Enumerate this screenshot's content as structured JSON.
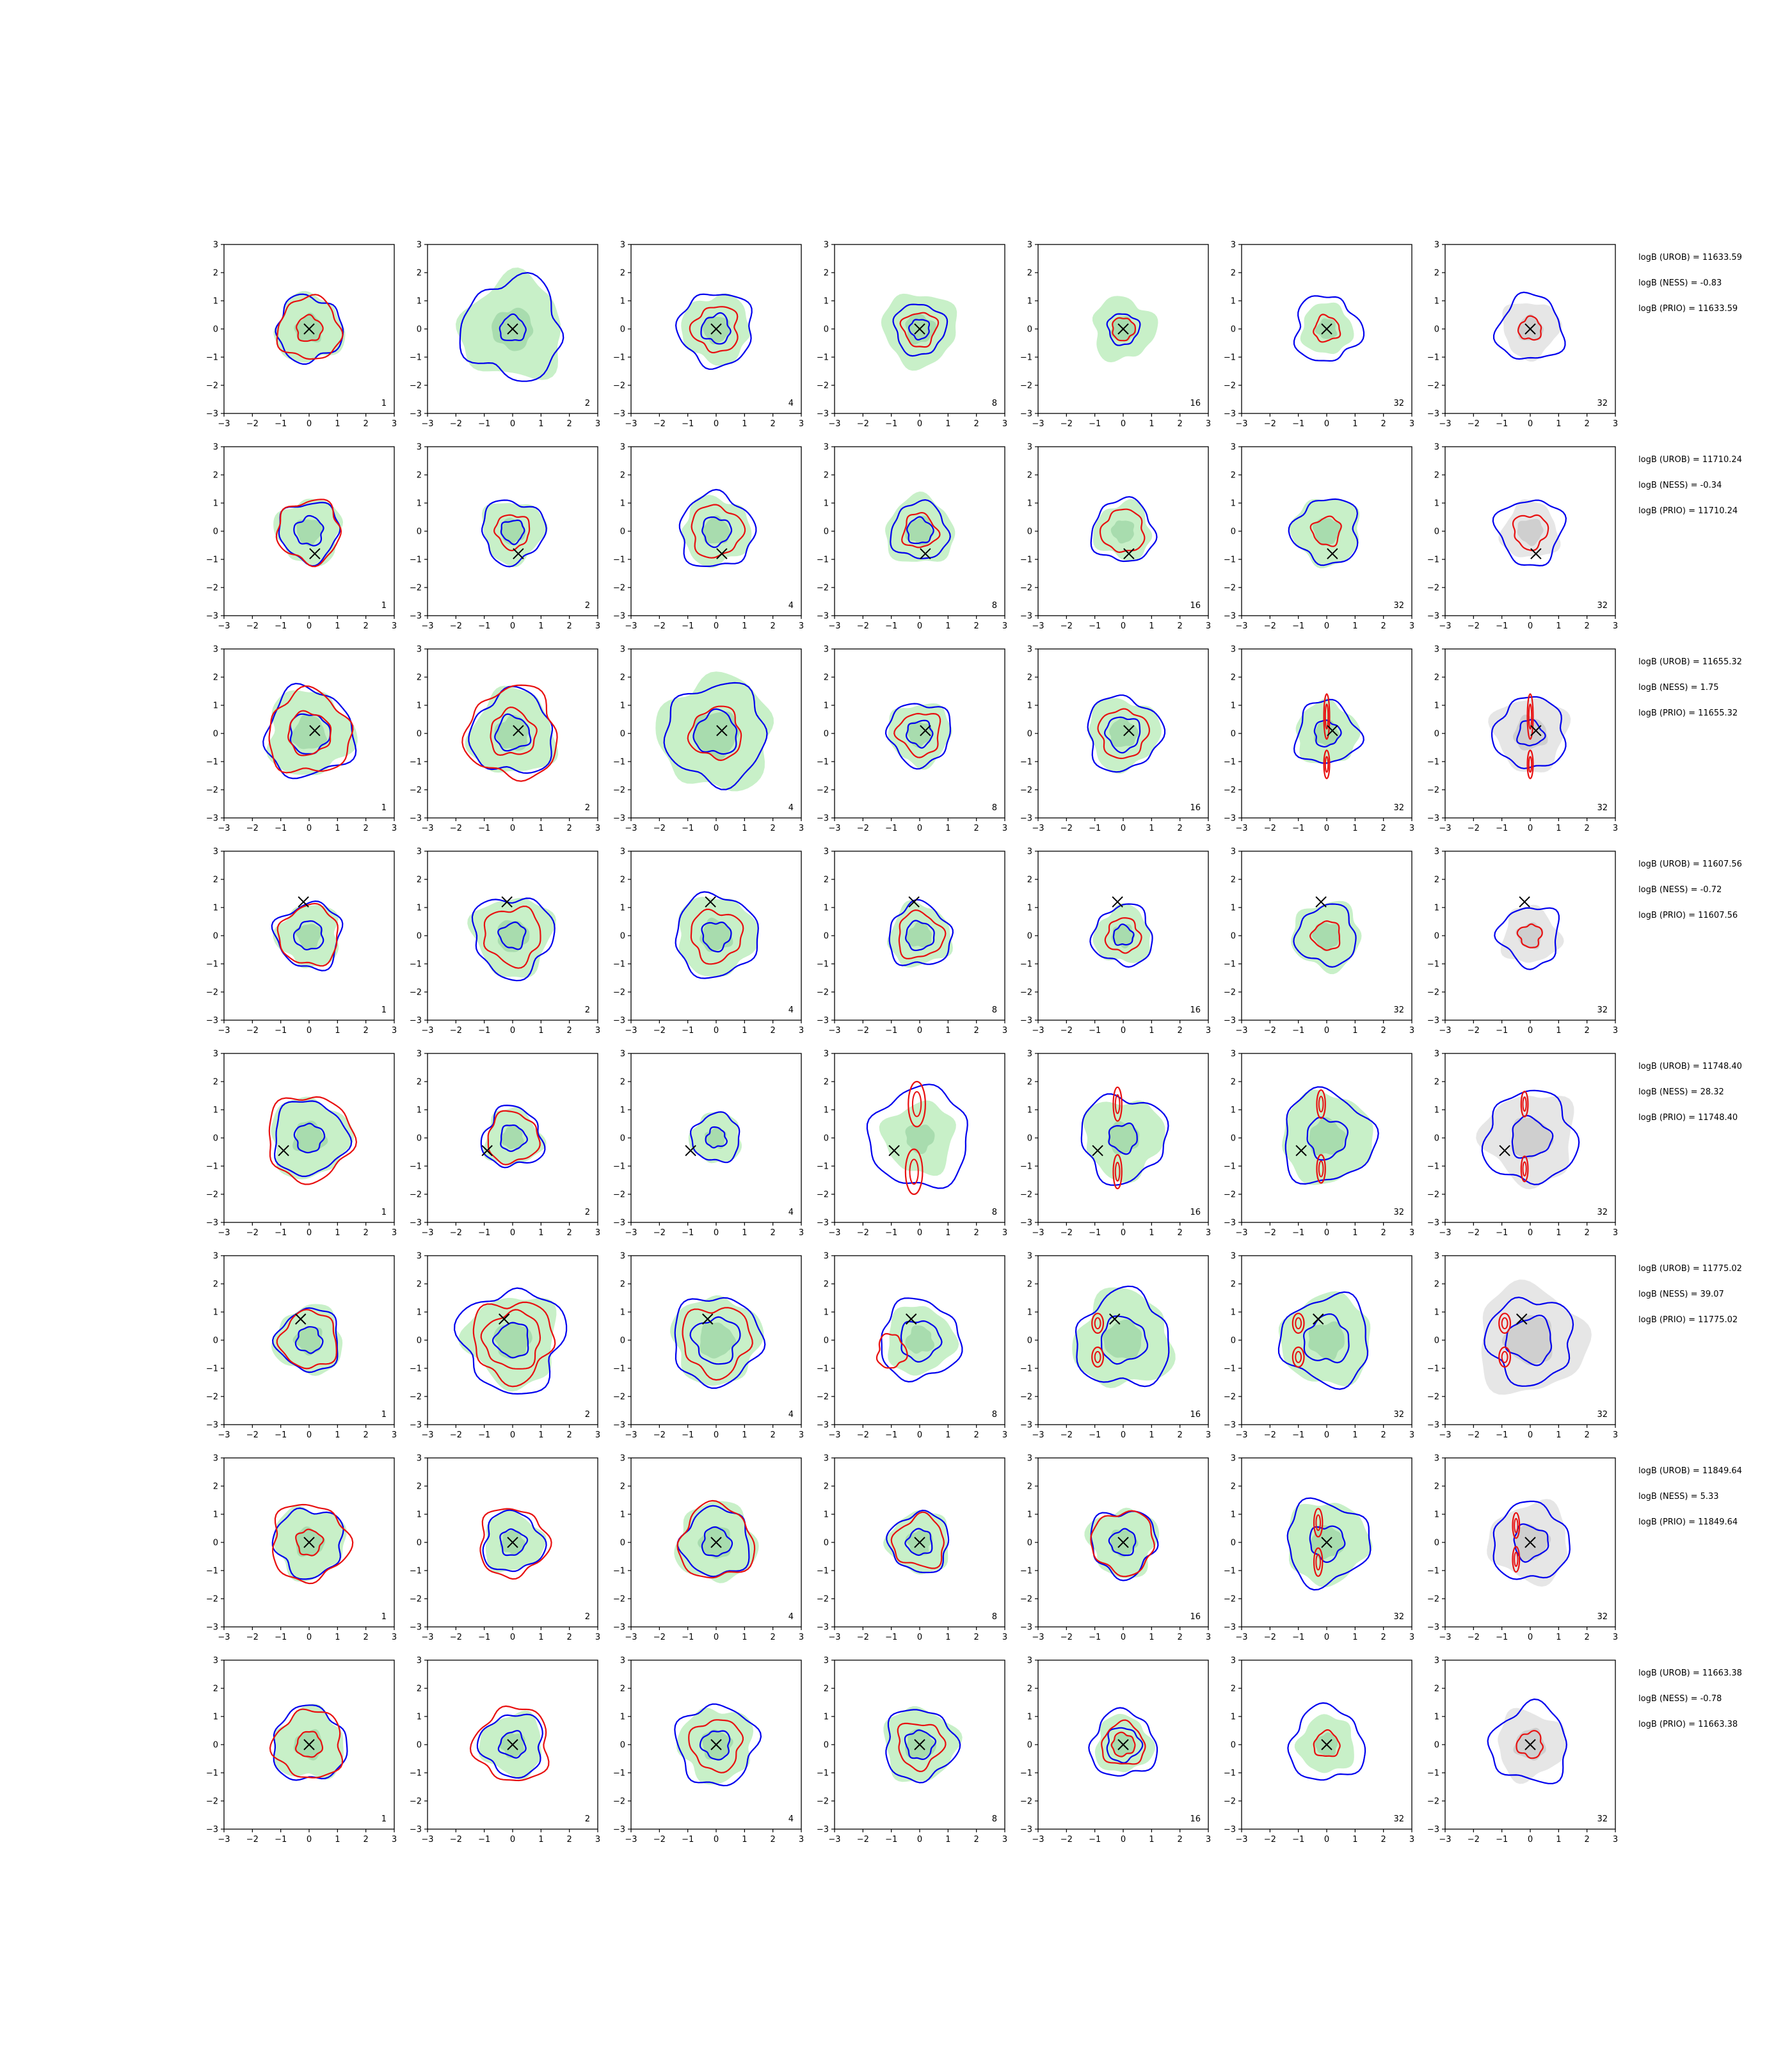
{
  "chart_data": {
    "type": "contour-grid",
    "rows": 8,
    "cols": 7,
    "xlim": [
      -3,
      3
    ],
    "ylim": [
      -3,
      3
    ],
    "ticks": [
      -3,
      -2,
      -1,
      0,
      1,
      2,
      3
    ],
    "tick_labels": [
      "−3",
      "−2",
      "−1",
      "0",
      "1",
      "2",
      "3"
    ],
    "col_labels": [
      "1",
      "2",
      "4",
      "8",
      "16",
      "32",
      "32"
    ],
    "colors": {
      "blue": "#0000ee",
      "red": "#e81010",
      "green_fill": "#c8f0c8",
      "green_inner": "#a8dcae",
      "grey_fill": "#e6e6e6",
      "grey_inner": "#cfcfcf",
      "marker": "#000000"
    },
    "markers": [
      [
        0,
        0
      ],
      [
        0.2,
        -0.8
      ],
      [
        0.2,
        0.1
      ],
      [
        -0.2,
        1.2
      ],
      [
        -0.9,
        -0.45
      ],
      [
        -0.3,
        0.75
      ],
      [
        0,
        0
      ],
      [
        0,
        0
      ]
    ],
    "panels": [
      [
        {
          "blue": [
            1.15
          ],
          "red": [
            0.45,
            1.1
          ],
          "green": 1.2
        },
        {
          "blue": [
            0.45,
            1.75
          ],
          "red": [],
          "green": 1.8
        },
        {
          "blue": [
            0.5,
            1.3
          ],
          "red": [
            0.8
          ],
          "green": 1.2
        },
        {
          "blue": [
            0.35,
            0.9
          ],
          "red": [
            0.6
          ],
          "green": 1.3
        },
        {
          "blue": [
            0.55
          ],
          "red": [
            0.4
          ],
          "green": 1.1
        },
        {
          "blue": [
            1.15
          ],
          "red": [
            0.45
          ],
          "green": 0.9
        },
        {
          "blue": [
            1.15
          ],
          "red": [
            0.4
          ],
          "green": 0,
          "grey": 1.0
        }
      ],
      [
        {
          "blue": [
            0.5,
            1.05
          ],
          "red": [
            1.1
          ],
          "green": 1.15
        },
        {
          "blue": [
            0.4,
            1.1
          ],
          "red": [
            0.6
          ],
          "green": 1.1
        },
        {
          "blue": [
            0.5,
            1.3
          ],
          "red": [
            0.9
          ],
          "green": 1.2
        },
        {
          "blue": [
            0.45,
            1.0
          ],
          "red": [
            0.6
          ],
          "green": 1.2
        },
        {
          "blue": [
            1.1
          ],
          "red": [
            0.75
          ],
          "green": 1.0
        },
        {
          "blue": [
            1.15
          ],
          "red": [
            0.5
          ],
          "green": 1.2
        },
        {
          "blue": [
            1.15
          ],
          "red": [
            0.6
          ],
          "green": 0,
          "grey": 1.0
        }
      ],
      [
        {
          "blue": [
            0.7,
            1.55
          ],
          "red": [
            0.75,
            1.45
          ],
          "green": 1.5
        },
        {
          "blue": [
            0.6,
            1.45
          ],
          "red": [
            0.8,
            1.6
          ],
          "green": 1.5
        },
        {
          "blue": [
            0.75,
            1.75
          ],
          "red": [
            0.9
          ],
          "green": 2.0
        },
        {
          "blue": [
            0.45,
            1.1
          ],
          "red": [
            0.75
          ],
          "green": 1.1
        },
        {
          "blue": [
            0.6,
            1.3
          ],
          "red": [
            0.85
          ],
          "green": 1.25
        },
        {
          "blue": [
            0.45,
            1.1
          ],
          "red": [],
          "green": 1.1,
          "red_vert": [
            [
              0,
              0.6,
              0.1,
              0.8
            ],
            [
              0,
              -1.1,
              0.1,
              0.5
            ]
          ]
        },
        {
          "blue": [
            0.45,
            1.25
          ],
          "red": [],
          "green": 0,
          "grey": 1.3,
          "red_vert": [
            [
              0,
              0.6,
              0.1,
              0.8
            ],
            [
              0,
              -1.1,
              0.1,
              0.5
            ]
          ]
        }
      ],
      [
        {
          "blue": [
            0.5,
            1.15
          ],
          "red": [
            1.05
          ],
          "green": 1.1
        },
        {
          "blue": [
            0.45,
            1.4
          ],
          "red": [
            1.0
          ],
          "green": 1.4
        },
        {
          "blue": [
            0.5,
            1.45
          ],
          "red": [
            0.9
          ],
          "green": 1.4
        },
        {
          "blue": [
            0.5,
            1.1
          ],
          "red": [
            0.8
          ],
          "green": 1.1
        },
        {
          "blue": [
            0.35,
            1.05
          ],
          "red": [
            0.6
          ],
          "green": 1.0
        },
        {
          "blue": [
            1.05
          ],
          "red": [
            0.5
          ],
          "green": 1.2
        },
        {
          "blue": [
            1.05
          ],
          "red": [
            0.4
          ],
          "green": 0,
          "grey": 1.0
        }
      ],
      [
        {
          "blue": [
            0.5,
            1.3
          ],
          "red": [
            1.5
          ],
          "green": 1.4
        },
        {
          "blue": [
            0.45,
            1.05
          ],
          "red": [
            0.9
          ],
          "green": 1.0
        },
        {
          "blue": [
            0.35,
            0.85
          ],
          "red": [],
          "green": 0.9
        },
        {
          "blue": [
            1.75
          ],
          "red": [],
          "green": 1.25,
          "red_vert": [
            [
              -0.1,
              1.2,
              0.3,
              0.8
            ],
            [
              -0.2,
              -1.2,
              0.3,
              0.8
            ]
          ]
        },
        {
          "blue": [
            0.5,
            1.5
          ],
          "red": [],
          "green": 1.4,
          "red_vert": [
            [
              -0.2,
              1.2,
              0.15,
              0.6
            ],
            [
              -0.2,
              -1.2,
              0.15,
              0.6
            ]
          ]
        },
        {
          "blue": [
            0.7,
            1.6
          ],
          "red": [],
          "green": 1.6,
          "red_vert": [
            [
              -0.2,
              1.2,
              0.15,
              0.5
            ],
            [
              -0.2,
              -1.1,
              0.15,
              0.5
            ]
          ]
        },
        {
          "blue": [
            0.7,
            1.6
          ],
          "red": [],
          "green": 0,
          "grey": 1.6,
          "red_vert": [
            [
              -0.2,
              1.2,
              0.12,
              0.45
            ],
            [
              -0.2,
              -1.1,
              0.12,
              0.45
            ]
          ]
        }
      ],
      [
        {
          "blue": [
            0.45,
            1.1
          ],
          "red": [
            1.0
          ],
          "green": 1.2
        },
        {
          "blue": [
            0.6,
            1.8
          ],
          "red": [
            1.0,
            1.4
          ],
          "green": 1.6
        },
        {
          "blue": [
            0.8,
            1.55
          ],
          "red": [
            1.2
          ],
          "green": 1.55
        },
        {
          "blue": [
            0.7,
            1.4
          ],
          "red": [],
          "green": 1.2,
          "red_blob": [
            [
              -1.0,
              -0.4,
              0.5,
              0.6
            ]
          ]
        },
        {
          "blue": [
            0.8,
            1.65
          ],
          "red": [],
          "green": 1.7,
          "red_vert": [
            [
              -0.9,
              0.6,
              0.2,
              0.35
            ],
            [
              -0.9,
              -0.6,
              0.2,
              0.35
            ]
          ]
        },
        {
          "blue": [
            0.8,
            1.55
          ],
          "red": [],
          "green": 1.6,
          "red_vert": [
            [
              -1.0,
              0.6,
              0.2,
              0.35
            ],
            [
              -1.0,
              -0.6,
              0.2,
              0.35
            ]
          ]
        },
        {
          "blue": [
            0.8,
            1.5
          ],
          "red": [],
          "green": 0,
          "grey": 1.9,
          "red_vert": [
            [
              -0.9,
              0.6,
              0.2,
              0.35
            ],
            [
              -0.9,
              -0.6,
              0.2,
              0.35
            ]
          ]
        }
      ],
      [
        {
          "blue": [
            1.2
          ],
          "red": [
            0.45,
            1.35
          ],
          "green": 1.25
        },
        {
          "blue": [
            0.45,
            1.05
          ],
          "red": [
            1.2
          ],
          "green": 1.05
        },
        {
          "blue": [
            0.5,
            1.2
          ],
          "red": [
            1.3
          ],
          "green": 1.4
        },
        {
          "blue": [
            0.45,
            1.05
          ],
          "red": [
            0.9
          ],
          "green": 1.1
        },
        {
          "blue": [
            0.45,
            1.15
          ],
          "red": [
            1.1
          ],
          "green": 1.2
        },
        {
          "blue": [
            0.6,
            1.45
          ],
          "red": [],
          "green": 1.45,
          "red_vert": [
            [
              -0.3,
              0.7,
              0.15,
              0.5
            ],
            [
              -0.3,
              -0.7,
              0.15,
              0.5
            ]
          ]
        },
        {
          "blue": [
            0.6,
            1.35
          ],
          "red": [],
          "green": 0,
          "grey": 1.4,
          "red_vert": [
            [
              -0.5,
              0.6,
              0.12,
              0.45
            ],
            [
              -0.5,
              -0.6,
              0.12,
              0.45
            ]
          ]
        }
      ],
      [
        {
          "blue": [
            1.3
          ],
          "red": [
            0.45,
            1.2
          ],
          "green": 1.25
        },
        {
          "blue": [
            0.45,
            1.1
          ],
          "red": [
            1.3
          ],
          "green": 1.1
        },
        {
          "blue": [
            0.5,
            1.4
          ],
          "red": [
            0.9
          ],
          "green": 1.3
        },
        {
          "blue": [
            0.5,
            1.25
          ],
          "red": [
            0.8
          ],
          "green": 1.3
        },
        {
          "blue": [
            0.6,
            1.15
          ],
          "red": [
            0.4,
            0.75
          ],
          "green": 1.0
        },
        {
          "blue": [
            1.3
          ],
          "red": [
            0.45
          ],
          "green": 1.0
        },
        {
          "blue": [
            1.35
          ],
          "red": [
            0.45
          ],
          "green": 0,
          "grey": 1.2
        }
      ]
    ]
  },
  "stats": [
    {
      "urob": "logB (UROB) = 11633.59",
      "ness": "logB (NESS) = -0.83",
      "prio": "logB (PRIO) = 11633.59"
    },
    {
      "urob": "logB (UROB) = 11710.24",
      "ness": "logB (NESS) = -0.34",
      "prio": "logB (PRIO) = 11710.24"
    },
    {
      "urob": "logB (UROB) = 11655.32",
      "ness": "logB (NESS) = 1.75",
      "prio": "logB (PRIO) = 11655.32"
    },
    {
      "urob": "logB (UROB) = 11607.56",
      "ness": "logB (NESS) = -0.72",
      "prio": "logB (PRIO) = 11607.56"
    },
    {
      "urob": "logB (UROB) = 11748.40",
      "ness": "logB (NESS) = 28.32",
      "prio": "logB (PRIO) = 11748.40"
    },
    {
      "urob": "logB (UROB) = 11775.02",
      "ness": "logB (NESS) = 39.07",
      "prio": "logB (PRIO) = 11775.02"
    },
    {
      "urob": "logB (UROB) = 11849.64",
      "ness": "logB (NESS) = 5.33",
      "prio": "logB (PRIO) = 11849.64"
    },
    {
      "urob": "logB (UROB) = 11663.38",
      "ness": "logB (NESS) = -0.78",
      "prio": "logB (PRIO) = 11663.38"
    }
  ]
}
